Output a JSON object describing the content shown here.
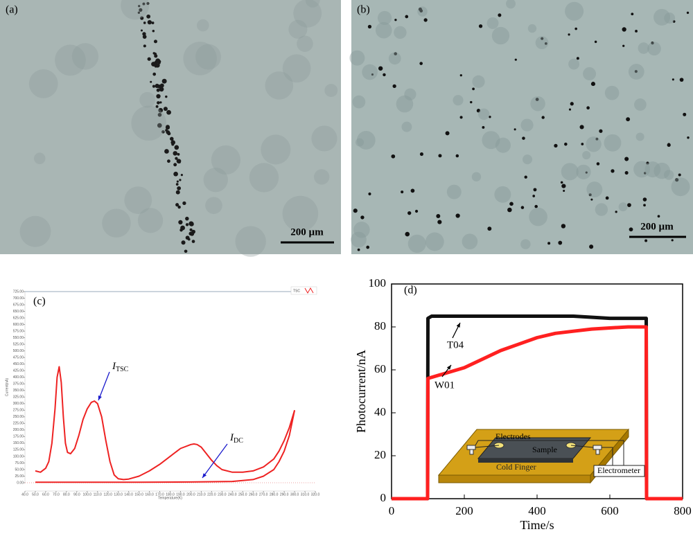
{
  "panels": {
    "a": {
      "label": "(a)",
      "scale_bar": "200 µm"
    },
    "b": {
      "label": "(b)",
      "scale_bar": "200 µm"
    },
    "d_inset": {
      "electrodes": "Electrodes",
      "sample": "Sample",
      "cold_finger": "Cold Finger",
      "electrometer": "Electrometer"
    }
  },
  "chart_data": [
    {
      "type": "line",
      "panel_label": "(c)",
      "x_label": "Temperature(K)",
      "y_label": "Current(nA)",
      "xlim": [
        40,
        320
      ],
      "ylim": [
        0,
        725
      ],
      "xticks": [
        {
          "value": 40,
          "label": "40.0"
        },
        {
          "value": 50,
          "label": "50.0"
        },
        {
          "value": 60,
          "label": "60.0"
        },
        {
          "value": 70,
          "label": "70.0"
        },
        {
          "value": 80,
          "label": "80.0"
        },
        {
          "value": 90,
          "label": "90.0"
        },
        {
          "value": 100,
          "label": "100.0"
        },
        {
          "value": 110,
          "label": "110.0"
        },
        {
          "value": 120,
          "label": "120.0"
        },
        {
          "value": 130,
          "label": "130.0"
        },
        {
          "value": 140,
          "label": "140.0"
        },
        {
          "value": 150,
          "label": "150.0"
        },
        {
          "value": 160,
          "label": "160.0"
        },
        {
          "value": 170,
          "label": "170.0"
        },
        {
          "value": 180,
          "label": "180.0"
        },
        {
          "value": 190,
          "label": "190.0"
        },
        {
          "value": 200,
          "label": "200.0"
        },
        {
          "value": 210,
          "label": "210.0"
        },
        {
          "value": 220,
          "label": "220.0"
        },
        {
          "value": 230,
          "label": "230.0"
        },
        {
          "value": 240,
          "label": "240.0"
        },
        {
          "value": 250,
          "label": "250.0"
        },
        {
          "value": 260,
          "label": "260.0"
        },
        {
          "value": 270,
          "label": "270.0"
        },
        {
          "value": 280,
          "label": "280.0"
        },
        {
          "value": 290,
          "label": "290.0"
        },
        {
          "value": 300,
          "label": "300.0"
        },
        {
          "value": 310,
          "label": "310.0"
        },
        {
          "value": 320,
          "label": "320.0"
        }
      ],
      "yticks": [
        {
          "value": 0,
          "label": "0.00"
        },
        {
          "value": 25,
          "label": "25.00"
        },
        {
          "value": 50,
          "label": "50.00"
        },
        {
          "value": 75,
          "label": "75.00"
        },
        {
          "value": 100,
          "label": "100.00"
        },
        {
          "value": 125,
          "label": "125.00"
        },
        {
          "value": 150,
          "label": "150.00"
        },
        {
          "value": 175,
          "label": "175.00"
        },
        {
          "value": 200,
          "label": "200.00"
        },
        {
          "value": 225,
          "label": "225.00"
        },
        {
          "value": 250,
          "label": "250.00"
        },
        {
          "value": 275,
          "label": "275.00"
        },
        {
          "value": 300,
          "label": "300.00"
        },
        {
          "value": 325,
          "label": "325.00"
        },
        {
          "value": 350,
          "label": "350.00"
        },
        {
          "value": 375,
          "label": "375.00"
        },
        {
          "value": 400,
          "label": "400.00"
        },
        {
          "value": 425,
          "label": "425.00"
        },
        {
          "value": 450,
          "label": "450.00"
        },
        {
          "value": 475,
          "label": "475.00"
        },
        {
          "value": 500,
          "label": "500.00"
        },
        {
          "value": 525,
          "label": "525.00"
        },
        {
          "value": 550,
          "label": "550.00"
        },
        {
          "value": 575,
          "label": "575.00"
        },
        {
          "value": 600,
          "label": "600.00"
        },
        {
          "value": 625,
          "label": "625.00"
        },
        {
          "value": 650,
          "label": "650.00"
        },
        {
          "value": 675,
          "label": "675.00"
        },
        {
          "value": 700,
          "label": "700.00"
        },
        {
          "value": 725,
          "label": "725.00"
        }
      ],
      "series": [
        {
          "name": "TSC",
          "color": "#ee2222",
          "x": [
            50,
            55,
            60,
            63,
            66,
            69,
            71,
            73,
            75,
            77,
            79,
            81,
            84,
            88,
            92,
            96,
            100,
            104,
            107,
            110,
            114,
            118,
            122,
            126,
            130,
            135,
            140,
            150,
            160,
            170,
            180,
            190,
            200,
            203,
            206,
            210,
            215,
            220,
            225,
            230,
            240,
            250,
            260,
            270,
            280,
            285,
            290,
            295,
            300
          ],
          "values": [
            45,
            40,
            55,
            80,
            150,
            280,
            400,
            440,
            380,
            250,
            150,
            115,
            110,
            130,
            180,
            240,
            280,
            305,
            310,
            300,
            250,
            160,
            80,
            30,
            15,
            12,
            14,
            25,
            45,
            70,
            100,
            130,
            145,
            147,
            145,
            135,
            110,
            85,
            65,
            50,
            40,
            40,
            45,
            60,
            90,
            120,
            160,
            210,
            275
          ]
        },
        {
          "color": "#ee2222",
          "x": [
            50,
            100,
            150,
            200,
            240,
            260,
            270,
            280,
            285,
            290,
            295,
            300
          ],
          "values": [
            2,
            2,
            2,
            3,
            5,
            12,
            25,
            50,
            80,
            120,
            180,
            275
          ]
        }
      ],
      "annotations": [
        {
          "text": "I",
          "sub": "TSC"
        },
        {
          "text": "I",
          "sub": "DC"
        }
      ]
    },
    {
      "type": "line",
      "panel_label": "(d)",
      "x_label": "Time/s",
      "y_label": "Photocurrent/nA",
      "xlim": [
        0,
        800
      ],
      "ylim": [
        0,
        100
      ],
      "xticks": [
        0,
        200,
        400,
        600,
        800
      ],
      "yticks": [
        0,
        20,
        40,
        60,
        80,
        100
      ],
      "series": [
        {
          "name": "T04",
          "color": "#111111",
          "x": [
            0,
            99,
            100,
            110,
            200,
            300,
            400,
            500,
            600,
            700,
            701,
            800
          ],
          "values": [
            0,
            0,
            84,
            85,
            85,
            85,
            85,
            85,
            84,
            84,
            0,
            0
          ]
        },
        {
          "name": "W01",
          "color": "#ff2020",
          "x": [
            0,
            99,
            100,
            150,
            200,
            250,
            300,
            350,
            400,
            450,
            500,
            550,
            600,
            650,
            700,
            701,
            800
          ],
          "values": [
            0,
            0,
            56,
            58.5,
            61,
            65,
            69,
            72,
            75,
            77,
            78,
            79,
            79.5,
            80,
            80,
            0,
            0
          ]
        }
      ]
    }
  ]
}
